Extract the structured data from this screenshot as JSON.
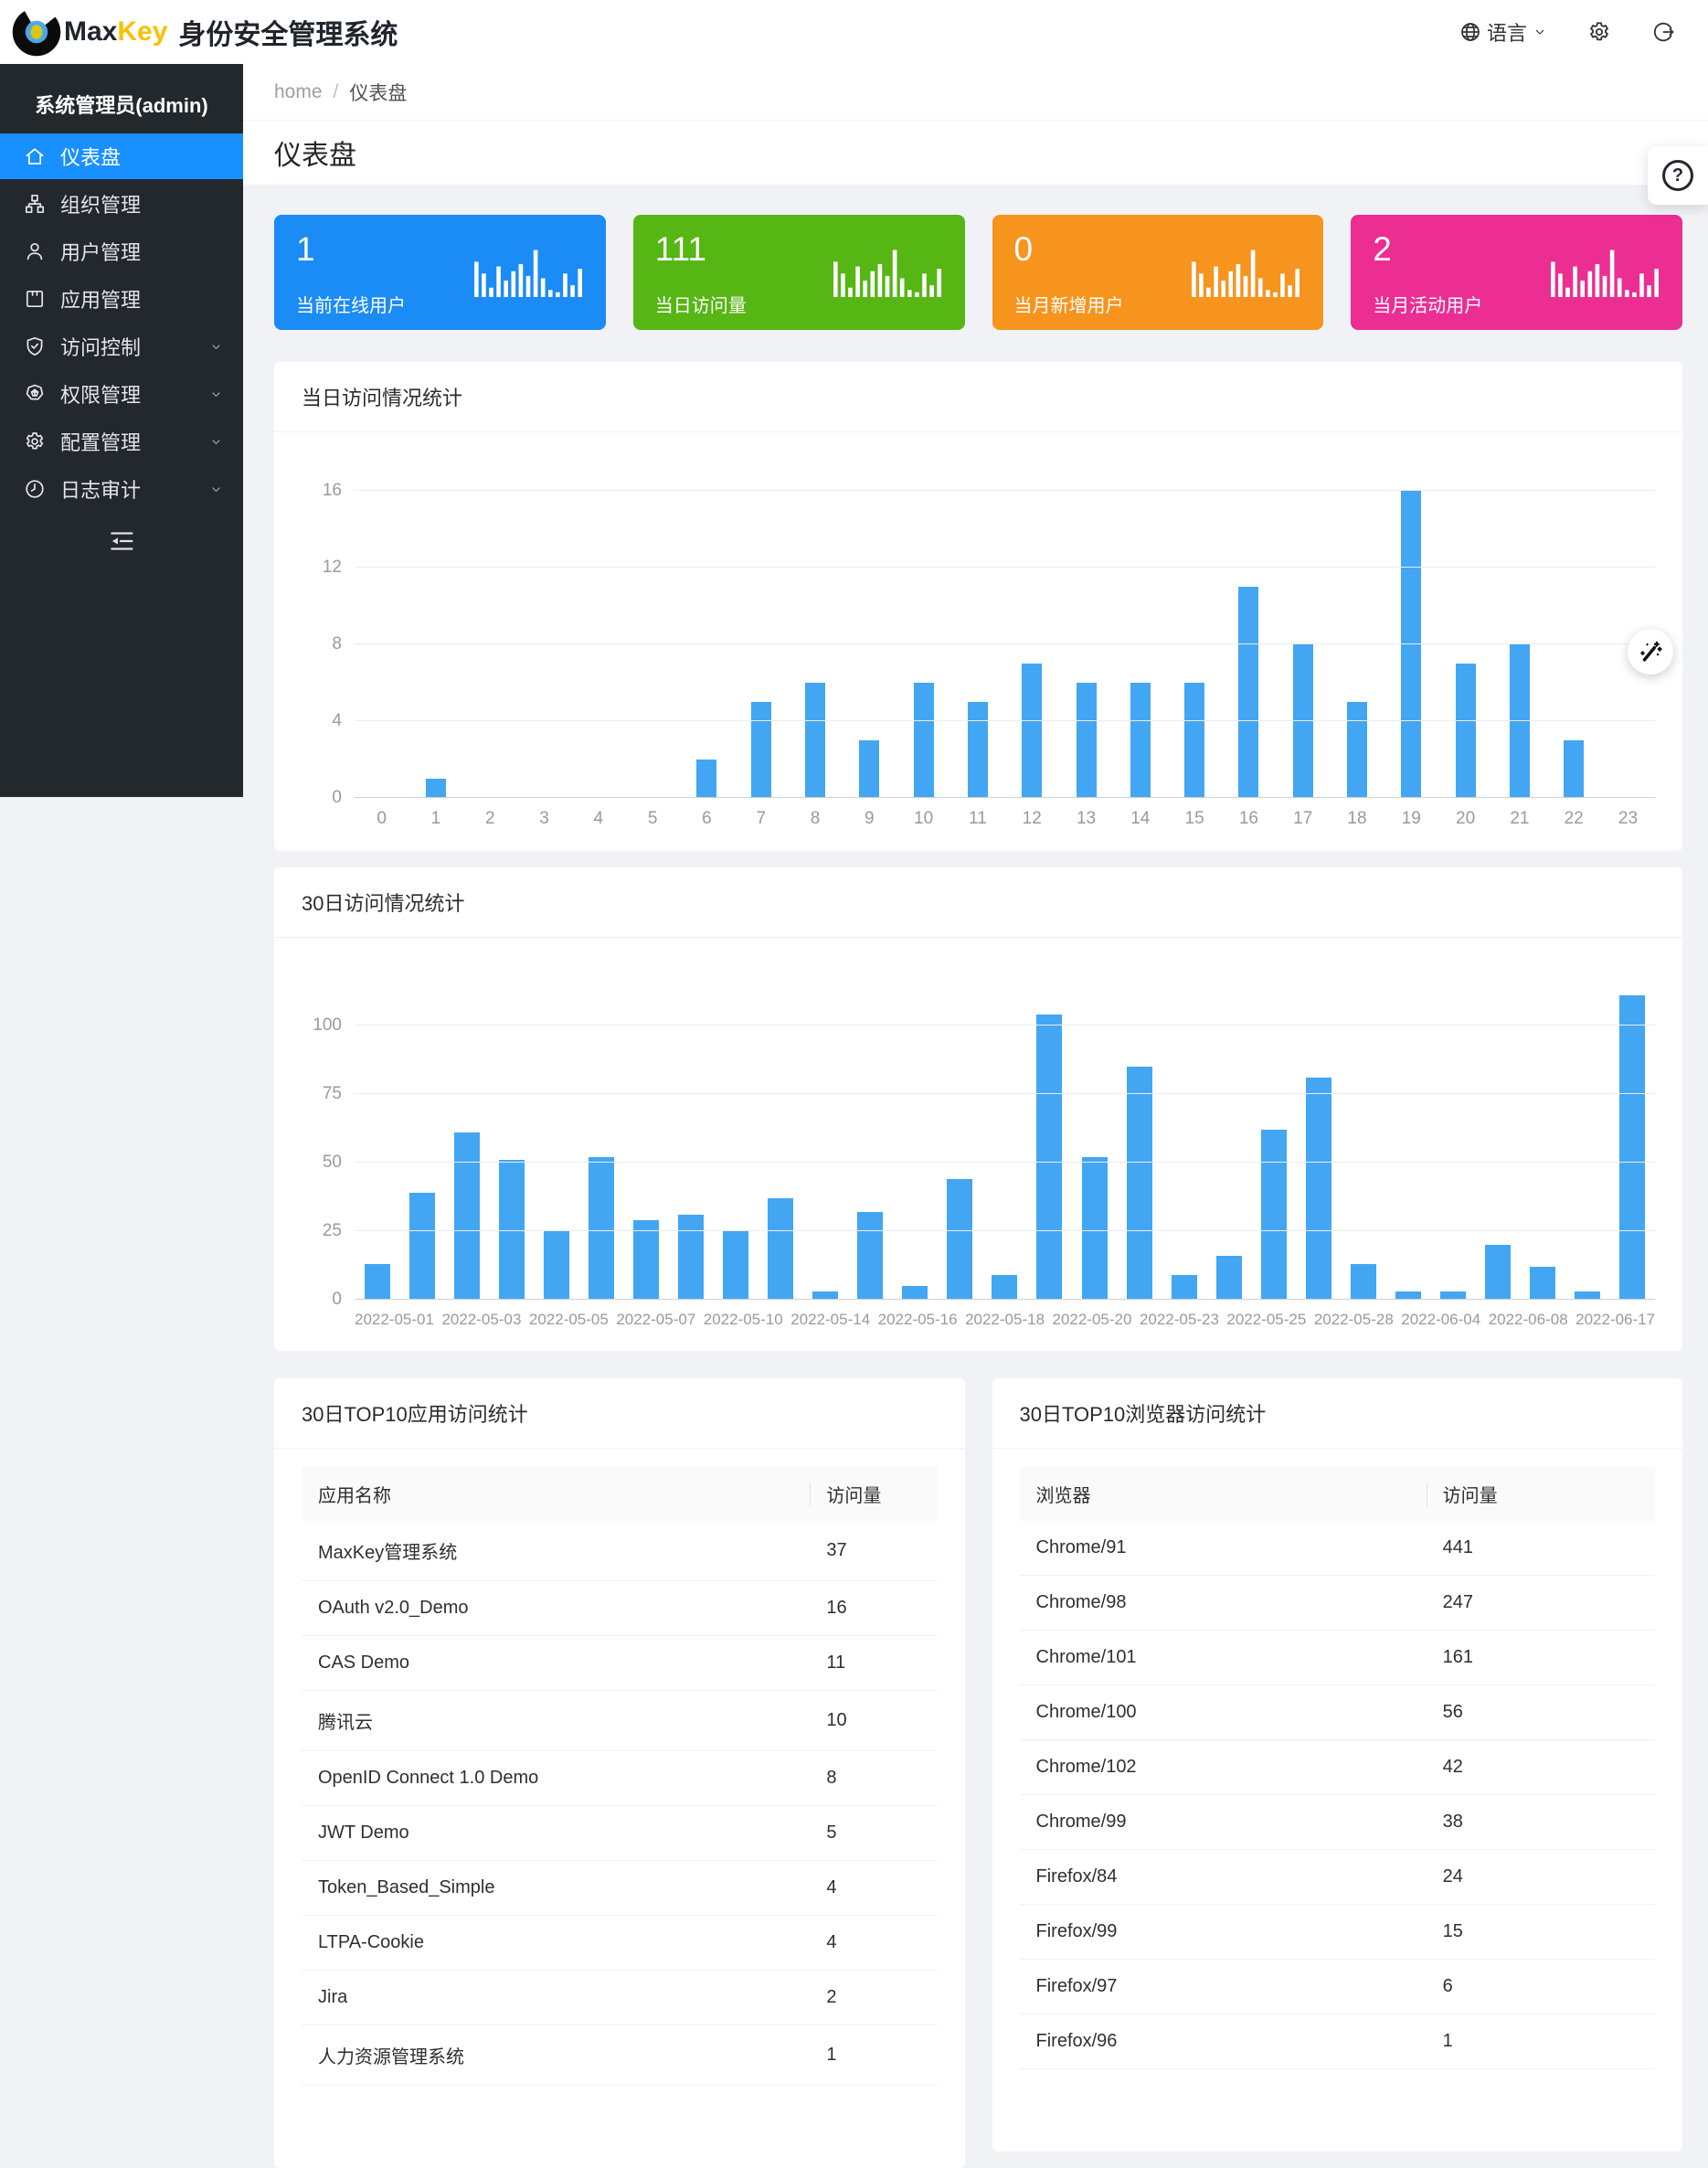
{
  "header": {
    "brand_max": "Max",
    "brand_key": "Key",
    "brand_suffix": "身份安全管理系统",
    "language": {
      "label": "语言"
    }
  },
  "sidebar": {
    "admin_label": "系统管理员(admin)",
    "items": [
      {
        "name": "dashboard",
        "icon": "home",
        "label": "仪表盘",
        "active": true,
        "expandable": false
      },
      {
        "name": "organizations",
        "icon": "cluster",
        "label": "组织管理",
        "active": false,
        "expandable": false
      },
      {
        "name": "users",
        "icon": "user",
        "label": "用户管理",
        "active": false,
        "expandable": false
      },
      {
        "name": "applications",
        "icon": "appstore",
        "label": "应用管理",
        "active": false,
        "expandable": false
      },
      {
        "name": "access-control",
        "icon": "safety",
        "label": "访问控制",
        "active": false,
        "expandable": true
      },
      {
        "name": "permissions",
        "icon": "permission",
        "label": "权限管理",
        "active": false,
        "expandable": true
      },
      {
        "name": "configuration",
        "icon": "gear",
        "label": "配置管理",
        "active": false,
        "expandable": true
      },
      {
        "name": "audit-log",
        "icon": "audit",
        "label": "日志审计",
        "active": false,
        "expandable": true
      }
    ]
  },
  "breadcrumb": {
    "home": "home",
    "separator": "/",
    "current": "仪表盘"
  },
  "page": {
    "title": "仪表盘"
  },
  "stat_cards": [
    {
      "value": "1",
      "label": "当前在线用户",
      "color": "#1b8bf5"
    },
    {
      "value": "111",
      "label": "当日访问量",
      "color": "#55b614"
    },
    {
      "value": "0",
      "label": "当月新增用户",
      "color": "#f7941e"
    },
    {
      "value": "2",
      "label": "当月活动用户",
      "color": "#ec2d92"
    }
  ],
  "chart_data": [
    {
      "type": "bar",
      "title": "当日访问情况统计",
      "categories": [
        "0",
        "1",
        "2",
        "3",
        "4",
        "5",
        "6",
        "7",
        "8",
        "9",
        "10",
        "11",
        "12",
        "13",
        "14",
        "15",
        "16",
        "17",
        "18",
        "19",
        "20",
        "21",
        "22",
        "23"
      ],
      "values": [
        0,
        1,
        0,
        0,
        0,
        0,
        2,
        5,
        6,
        3,
        6,
        5,
        7,
        6,
        6,
        6,
        11,
        8,
        5,
        16,
        7,
        8,
        3,
        0
      ],
      "yticks": [
        0,
        4,
        8,
        12,
        16
      ],
      "ylim": [
        0,
        16
      ],
      "xlabel": "",
      "ylabel": "",
      "grid": true,
      "legend_position": "none",
      "bar_color": "#42a6f3"
    },
    {
      "type": "bar",
      "title": "30日访问情况统计",
      "categories": [
        "2022-05-01",
        "",
        "2022-05-03",
        "",
        "2022-05-05",
        "",
        "2022-05-07",
        "",
        "2022-05-10",
        "",
        "2022-05-14",
        "",
        "2022-05-16",
        "",
        "2022-05-18",
        "",
        "2022-05-20",
        "",
        "2022-05-23",
        "",
        "2022-05-25",
        "",
        "2022-05-28",
        "",
        "2022-06-04",
        "",
        "2022-06-08",
        "",
        "2022-06-17"
      ],
      "values": [
        13,
        39,
        61,
        51,
        25,
        52,
        29,
        31,
        25,
        37,
        3,
        32,
        5,
        44,
        9,
        104,
        52,
        85,
        9,
        16,
        62,
        81,
        13,
        3,
        3,
        20,
        12,
        3,
        111
      ],
      "yticks": [
        0,
        25,
        50,
        75,
        100
      ],
      "ylim": [
        0,
        115
      ],
      "xlabel": "",
      "ylabel": "",
      "grid": true,
      "legend_position": "none",
      "bar_color": "#42a6f3"
    }
  ],
  "tables": [
    {
      "title": "30日TOP10应用访问统计",
      "columns": [
        "应用名称",
        "访问量"
      ],
      "rows": [
        [
          "MaxKey管理系统",
          "37"
        ],
        [
          "OAuth v2.0_Demo",
          "16"
        ],
        [
          "CAS Demo",
          "11"
        ],
        [
          "腾讯云",
          "10"
        ],
        [
          "OpenID Connect 1.0 Demo",
          "8"
        ],
        [
          "JWT Demo",
          "5"
        ],
        [
          "Token_Based_Simple",
          "4"
        ],
        [
          "LTPA-Cookie",
          "4"
        ],
        [
          "Jira",
          "2"
        ],
        [
          "人力资源管理系统",
          "1"
        ]
      ]
    },
    {
      "title": "30日TOP10浏览器访问统计",
      "columns": [
        "浏览器",
        "访问量"
      ],
      "rows": [
        [
          "Chrome/91",
          "441"
        ],
        [
          "Chrome/98",
          "247"
        ],
        [
          "Chrome/101",
          "161"
        ],
        [
          "Chrome/100",
          "56"
        ],
        [
          "Chrome/102",
          "42"
        ],
        [
          "Chrome/99",
          "38"
        ],
        [
          "Firefox/84",
          "24"
        ],
        [
          "Firefox/99",
          "15"
        ],
        [
          "Firefox/97",
          "6"
        ],
        [
          "Firefox/96",
          "1"
        ]
      ]
    }
  ],
  "floating": {
    "help_label": "?"
  }
}
